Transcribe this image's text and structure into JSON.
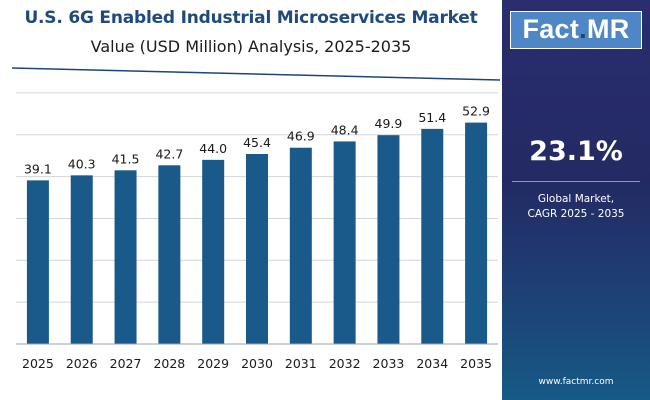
{
  "chart_data": {
    "type": "bar",
    "title": "U.S. 6G Enabled Industrial Microservices Market",
    "subtitle": "Value (USD Million) Analysis, 2025-2035",
    "categories": [
      "2025",
      "2026",
      "2027",
      "2028",
      "2029",
      "2030",
      "2031",
      "2032",
      "2033",
      "2034",
      "2035"
    ],
    "values": [
      39.1,
      40.3,
      41.5,
      42.7,
      44.0,
      45.4,
      46.9,
      48.4,
      49.9,
      51.4,
      52.9
    ],
    "value_labels": [
      "39.1",
      "40.3",
      "41.5",
      "42.7",
      "44.0",
      "45.4",
      "46.9",
      "48.4",
      "49.9",
      "51.4",
      "52.9"
    ],
    "xlabel": "",
    "ylabel": "",
    "ylim": [
      0,
      60
    ],
    "grid": "horizontal",
    "bar_color": "#1a5a8a"
  },
  "sidebar": {
    "logo_main": "Fact",
    "logo_dot": ".",
    "logo_suffix": "MR",
    "cagr_value": "23.1%",
    "cagr_line1": "Global Market,",
    "cagr_line2": "CAGR 2025 - 2035",
    "website": "www.factmr.com"
  },
  "colors": {
    "title": "#1f4a7a",
    "bar": "#1a5a8a",
    "grid": "#cfd6dd",
    "sidebar_top": "#2a2d6e",
    "sidebar_bottom": "#165a86",
    "logo_bg": "#4f86c6"
  }
}
